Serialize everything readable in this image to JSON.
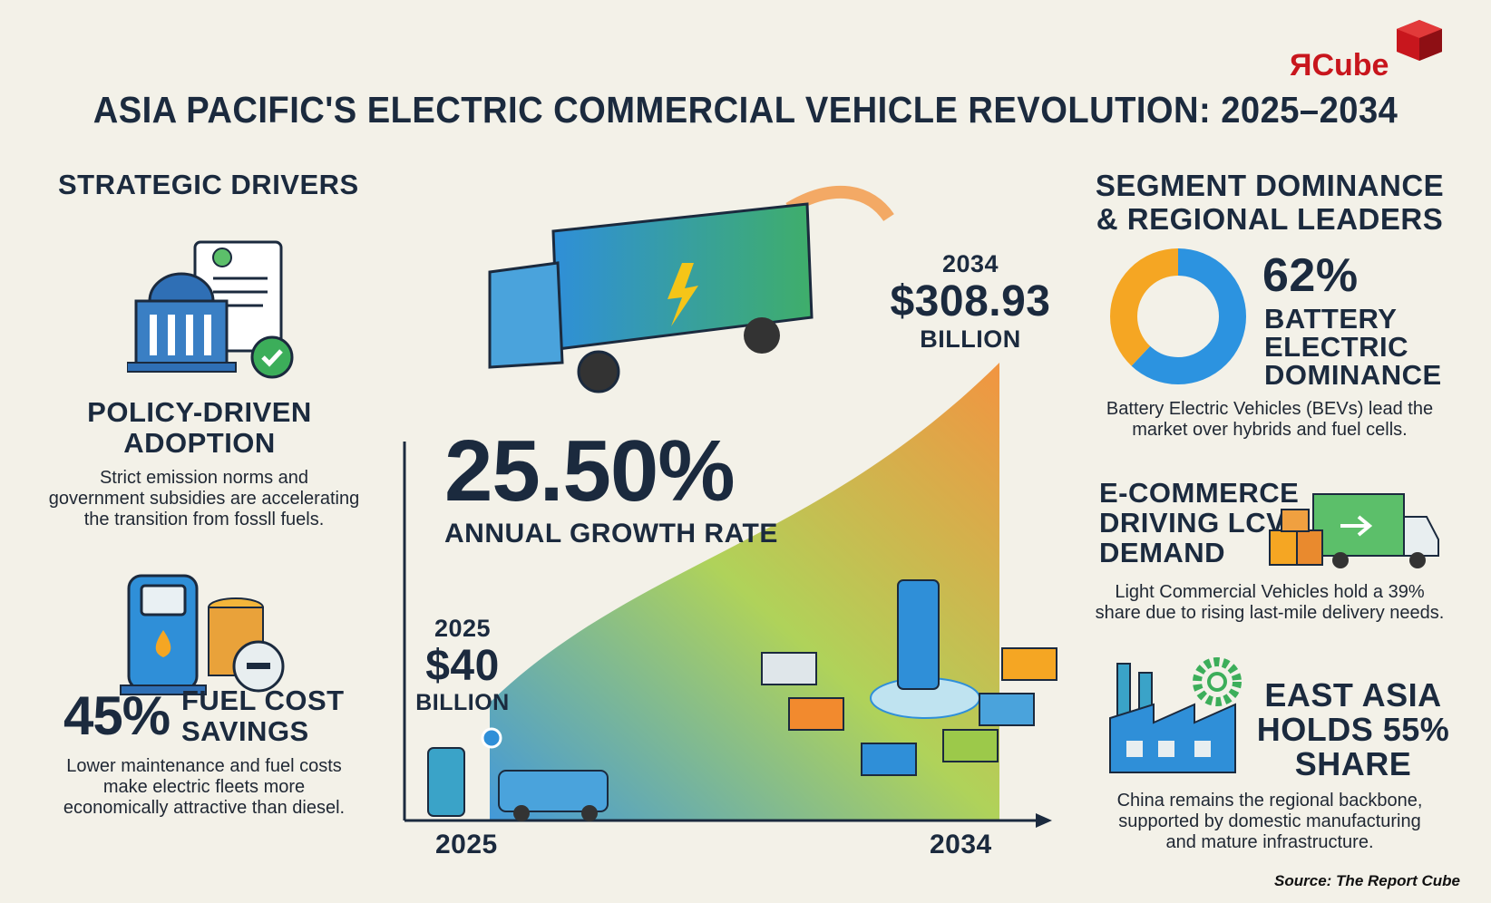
{
  "logo": {
    "text": "ЯCube"
  },
  "title": "ASIA PACIFIC'S ELECTRIC COMMERCIAL VEHICLE REVOLUTION: 2025–2034",
  "left": {
    "heading": "STRATEGIC DRIVERS",
    "policy": {
      "title_line1": "POLICY-DRIVEN",
      "title_line2": "ADOPTION",
      "text_line1": "Strict emission norms and",
      "text_line2": "government subsidies are accelerating",
      "text_line3": "the transition from fossll fuels.",
      "icon": "government-building-document-icon"
    },
    "fuel": {
      "percent": "45%",
      "title_line1": "FUEL COST",
      "title_line2": "SAVINGS",
      "text_line1": "Lower maintenance and fuel costs",
      "text_line2": "make electric fleets more",
      "text_line3": "economically attractive than diesel.",
      "icon": "fuel-pump-coins-minus-icon"
    }
  },
  "center": {
    "growth_value": "25.50%",
    "growth_label": "ANNUAL GROWTH RATE",
    "start": {
      "year": "2025",
      "value": "$40",
      "unit": "BILLION"
    },
    "end": {
      "year": "2034",
      "value": "$308.93",
      "unit": "BILLION"
    },
    "axis_start": "2025",
    "axis_end": "2034",
    "colors": {
      "blue": "#2f8fd8",
      "green": "#9cc94a",
      "orange": "#f28a2e"
    }
  },
  "right": {
    "heading_line1": "SEGMENT DOMINANCE",
    "heading_line2": "& REGIONAL LEADERS",
    "bev": {
      "percent": "62%",
      "share": 62,
      "label_line1": "BATTERY",
      "label_line2": "ELECTRIC",
      "label_line3": "DOMINANCE",
      "text_line1": "Battery Electric Vehicles (BEVs) lead the",
      "text_line2": "market over hybrids and fuel cells.",
      "colors": {
        "bev": "#2c93e0",
        "other": "#f5a623"
      }
    },
    "ecommerce": {
      "title_line1": "E-COMMERCE",
      "title_line2": "DRIVING LCV",
      "title_line3": "DEMAND",
      "text_line1": "Light Commercial Vehicles hold a 39%",
      "text_line2": "share due to rising last-mile delivery needs.",
      "icon": "delivery-truck-boxes-icon"
    },
    "eastasia": {
      "title_line1": "EAST ASIA",
      "title_line2": "HOLDS 55%",
      "title_line3": "SHARE",
      "text_line1": "China remains the regional backbone,",
      "text_line2": "supported by domestic manufacturing",
      "text_line3": "and mature infrastructure.",
      "icon": "factory-gear-icon"
    }
  },
  "source": "Source: The Report Cube"
}
